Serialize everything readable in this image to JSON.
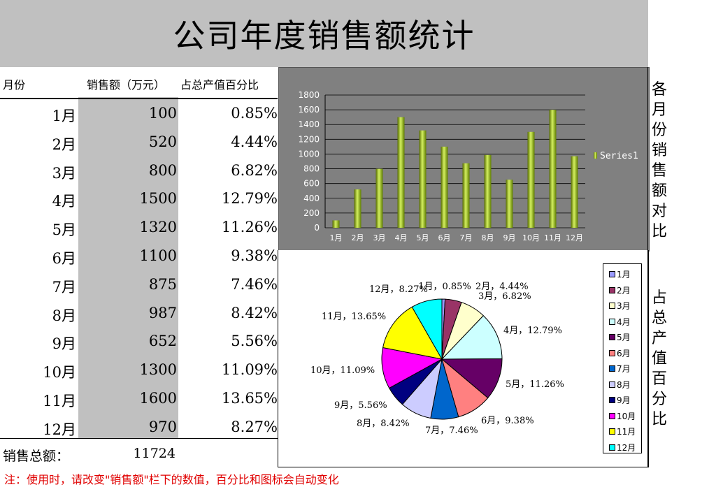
{
  "title": "公司年度销售额统计",
  "table": {
    "headers": {
      "month": "月份",
      "sales": "销售额（万元）",
      "pct": "占总产值百分比"
    },
    "rows": [
      {
        "month": "1月",
        "sales": "100",
        "pct": "0.85%"
      },
      {
        "month": "2月",
        "sales": "520",
        "pct": "4.44%"
      },
      {
        "month": "3月",
        "sales": "800",
        "pct": "6.82%"
      },
      {
        "month": "4月",
        "sales": "1500",
        "pct": "12.79%"
      },
      {
        "month": "5月",
        "sales": "1320",
        "pct": "11.26%"
      },
      {
        "month": "6月",
        "sales": "1100",
        "pct": "9.38%"
      },
      {
        "month": "7月",
        "sales": "875",
        "pct": "7.46%"
      },
      {
        "month": "8月",
        "sales": "987",
        "pct": "8.42%"
      },
      {
        "month": "9月",
        "sales": "652",
        "pct": "5.56%"
      },
      {
        "month": "10月",
        "sales": "1300",
        "pct": "11.09%"
      },
      {
        "month": "11月",
        "sales": "1600",
        "pct": "13.65%"
      },
      {
        "month": "12月",
        "sales": "970",
        "pct": "8.27%"
      }
    ],
    "total_label": "销售总额：",
    "total_value": "11724"
  },
  "note": "注：使用时，请改变\"销售额\"栏下的数值，百分比和图标会自动变化",
  "side_labels": {
    "bar": "各月份销售额对比",
    "pie": "占总产值百分比"
  },
  "chart_data": [
    {
      "type": "bar",
      "categories": [
        "1月",
        "2月",
        "3月",
        "4月",
        "5月",
        "6月",
        "7月",
        "8月",
        "9月",
        "10月",
        "11月",
        "12月"
      ],
      "series": [
        {
          "name": "Series1",
          "values": [
            100,
            520,
            800,
            1500,
            1320,
            1100,
            875,
            987,
            652,
            1300,
            1600,
            970
          ]
        }
      ],
      "ylim": [
        0,
        1800
      ],
      "yticks": [
        "0",
        "200",
        "400",
        "600",
        "800",
        "1000",
        "1200",
        "1400",
        "1600",
        "1800"
      ],
      "grid": true,
      "legend": "right",
      "colors": {
        "bar": "#9acd32",
        "background": "#808080"
      }
    },
    {
      "type": "pie",
      "categories": [
        "1月",
        "2月",
        "3月",
        "4月",
        "5月",
        "6月",
        "7月",
        "8月",
        "9月",
        "10月",
        "11月",
        "12月"
      ],
      "values": [
        0.85,
        4.44,
        6.82,
        12.79,
        11.26,
        9.38,
        7.46,
        8.42,
        5.56,
        11.09,
        13.65,
        8.27
      ],
      "labels": [
        "1月，0.85%",
        "2月，4.44%",
        "3月，6.82%",
        "4月，12.79%",
        "5月，11.26%",
        "6月，9.38%",
        "7月，7.46%",
        "8月，8.42%",
        "9月，5.56%",
        "10月，11.09%",
        "11月，13.65%",
        "12月，8.27%"
      ],
      "colors": [
        "#9999ff",
        "#993366",
        "#ffffcc",
        "#ccffff",
        "#660066",
        "#ff8080",
        "#0066cc",
        "#ccccff",
        "#000080",
        "#ff00ff",
        "#ffff00",
        "#00ffff"
      ],
      "legend": "right"
    }
  ]
}
